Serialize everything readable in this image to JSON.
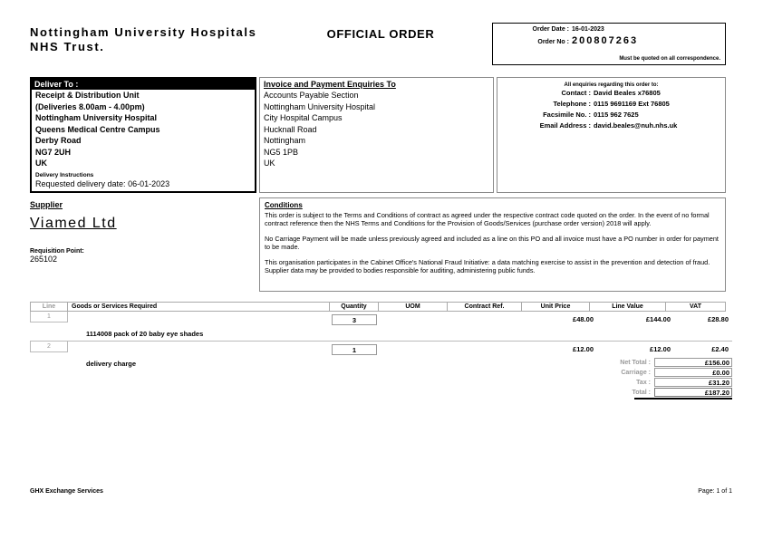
{
  "page": {
    "trust_name_line1": "Nottingham University Hospitals",
    "trust_name_line2": "NHS Trust.",
    "doc_title": "OFFICIAL ORDER",
    "footer_left": "GHX Exchange Services",
    "footer_right": "Page: 1 of 1"
  },
  "order_box": {
    "date_label": "Order Date :",
    "date_value": "16-01-2023",
    "no_label": "Order No :",
    "no_value": "200807263",
    "note": "Must be quoted on all correspondence."
  },
  "deliver_to": {
    "header": "Deliver To :",
    "lines": [
      "Receipt & Distribution Unit",
      "(Deliveries 8.00am - 4.00pm)",
      "Nottingham University Hospital",
      "Queens Medical Centre Campus",
      "Derby Road",
      "NG7 2UH",
      "UK"
    ],
    "instructions_label": "Delivery Instructions",
    "requested_date": "Requested delivery date: 06-01-2023"
  },
  "invoice_to": {
    "header": "Invoice and Payment Enquiries To",
    "lines": [
      "Accounts Payable Section",
      "Nottingham University Hospital",
      "City Hospital Campus",
      "Hucknall Road",
      "Nottingham",
      "NG5 1PB",
      "UK"
    ]
  },
  "enquiries": {
    "note": "All enquiries regarding this order to:",
    "contact_label": "Contact :",
    "contact_value": "David Beales x76805",
    "telephone_label": "Telephone :",
    "telephone_value": "0115 9691169 Ext 76805",
    "facsimile_label": "Facsimile No. :",
    "facsimile_value": "0115 962 7625",
    "email_label": "Email Address :",
    "email_value": "david.beales@nuh.nhs.uk"
  },
  "supplier": {
    "header": "Supplier",
    "name": "Viamed Ltd",
    "requisition_label": "Requisition Point:",
    "requisition_value": "265102"
  },
  "conditions": {
    "header": "Conditions",
    "paragraphs": [
      "This order is subject to the Terms and Conditions of contract as agreed under the respective contract code quoted on the order. In the event of no formal contract reference then the NHS Terms and Conditions for the Provision of Goods/Services (purchase order version) 2018 will apply.",
      "No Carriage Payment will be made unless previously agreed and included as a line on this PO and all invoice must have a PO number in order for payment to be made.",
      "This organisation participates in the Cabinet Office's National Fraud Initiative: a data matching exercise to assist in the prevention and detection of fraud. Supplier data may be provided to bodies responsible for auditing, administering public funds."
    ]
  },
  "table": {
    "headers": [
      "Line",
      "Goods or Services Required",
      "Quantity",
      "UOM",
      "Contract Ref.",
      "Unit Price",
      "Line Value",
      "VAT"
    ],
    "rows": [
      {
        "line": "1",
        "quantity": "3",
        "unit_price": "£48.00",
        "line_value": "£144.00",
        "vat": "£28.80",
        "description": "1114008 pack of 20 baby eye shades"
      },
      {
        "line": "2",
        "quantity": "1",
        "unit_price": "£12.00",
        "line_value": "£12.00",
        "vat": "£2.40",
        "description": "delivery charge"
      }
    ]
  },
  "totals": {
    "net_label": "Net Total :",
    "net_value": "£156.00",
    "carriage_label": "Carriage :",
    "carriage_value": "£0.00",
    "tax_label": "Tax :",
    "tax_value": "£31.20",
    "total_label": "Total :",
    "total_value": "£187.20"
  }
}
